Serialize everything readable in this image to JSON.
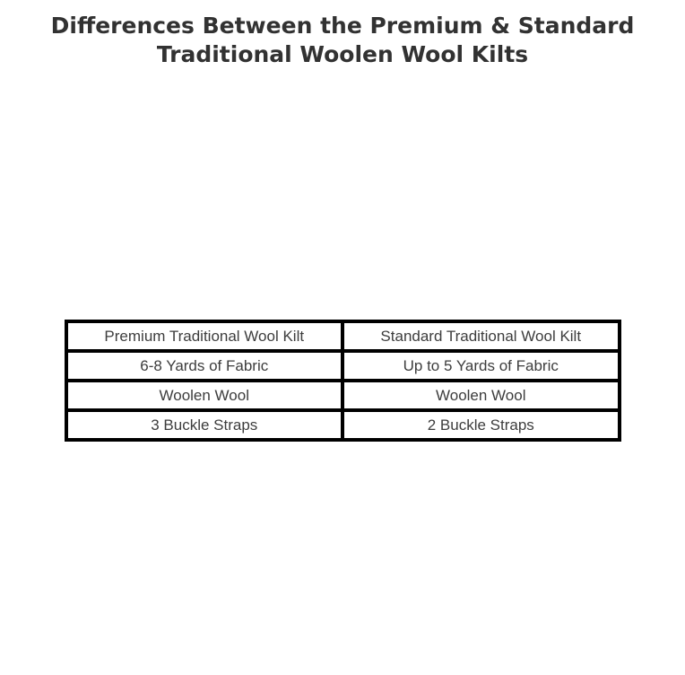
{
  "page": {
    "background_color": "#ffffff",
    "heading": {
      "text": "Differences Between the Premium & Standard Traditional Woolen Wool Kilts",
      "color": "#323232"
    }
  },
  "comparison_table": {
    "border_color": "#000000",
    "text_color": "#3d3d3d",
    "column_count": 2,
    "rows": [
      [
        "Premium Traditional Wool Kilt",
        "Standard Traditional Wool Kilt"
      ],
      [
        "6-8 Yards of Fabric",
        "Up to 5 Yards of Fabric"
      ],
      [
        "Woolen Wool",
        "Woolen Wool"
      ],
      [
        "3 Buckle Straps",
        "2 Buckle Straps"
      ]
    ]
  }
}
